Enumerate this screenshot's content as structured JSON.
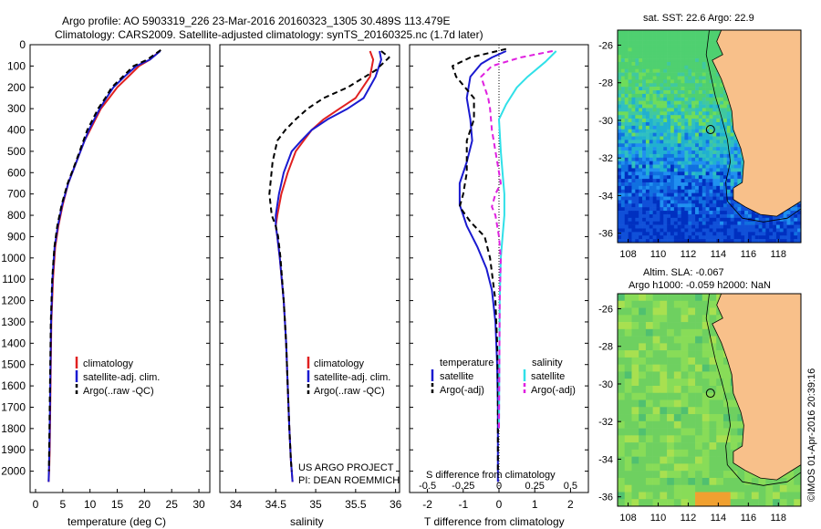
{
  "header": {
    "line1": "Argo profile: AO 5903319_226 23-Mar-2016 20160323_1305 30.489S 113.479E",
    "line2": "Climatology: CARS2009. Satellite-adjusted climatology: synTS_20160325.nc (1.7d later)"
  },
  "colors": {
    "climatology": "#e02020",
    "satellite": "#1a1ad0",
    "argo": "#000000",
    "salinity_satellite": "#30e0e8",
    "salinity_argo": "#e020e0",
    "land": "#f8c08a"
  },
  "chart_data": [
    {
      "type": "line",
      "name": "temperature",
      "xlabel": "temperature (deg C)",
      "ylabel": "",
      "xlim": [
        -1,
        32
      ],
      "ylim": [
        2100,
        0
      ],
      "xticks": [
        "0",
        "5",
        "10",
        "15",
        "20",
        "25",
        "30"
      ],
      "xtick_values": [
        0,
        5,
        10,
        15,
        20,
        25,
        30
      ],
      "yticks": [
        "0",
        "100",
        "200",
        "300",
        "400",
        "500",
        "600",
        "700",
        "800",
        "900",
        "1000",
        "1100",
        "1200",
        "1300",
        "1400",
        "1500",
        "1600",
        "1700",
        "1800",
        "1900",
        "2000"
      ],
      "ytick_values": [
        0,
        100,
        200,
        300,
        400,
        500,
        600,
        700,
        800,
        900,
        1000,
        1100,
        1200,
        1300,
        1400,
        1500,
        1600,
        1700,
        1800,
        1900,
        2000
      ],
      "legend": [
        "climatology",
        "satellite-adj. clim.",
        "Argo(..raw -QC)"
      ],
      "series": [
        {
          "name": "climatology",
          "style": "solid",
          "color": "#e02020",
          "x": [
            22.8,
            21,
            19,
            17,
            15,
            13.5,
            12,
            11,
            10,
            9,
            7.5,
            6,
            5,
            4.2,
            3.6,
            3.2,
            2.9,
            2.8,
            2.7,
            2.6,
            2.5,
            2.4
          ],
          "y": [
            30,
            70,
            100,
            150,
            200,
            250,
            300,
            350,
            400,
            450,
            550,
            650,
            750,
            850,
            950,
            1100,
            1300,
            1500,
            1700,
            1900,
            2000,
            2050
          ]
        },
        {
          "name": "satellite-adj. clim.",
          "style": "solid",
          "color": "#1a1ad0",
          "x": [
            22.9,
            21,
            18.5,
            16.3,
            14.3,
            13,
            11.8,
            10.8,
            9.8,
            9,
            7.5,
            6,
            4.9,
            4.1,
            3.5,
            3.1,
            2.85,
            2.75,
            2.65,
            2.55,
            2.45,
            2.4
          ],
          "y": [
            30,
            70,
            100,
            150,
            200,
            250,
            300,
            350,
            400,
            450,
            550,
            650,
            750,
            850,
            950,
            1100,
            1300,
            1500,
            1700,
            1900,
            2000,
            2050
          ]
        },
        {
          "name": "Argo(..raw -QC)",
          "style": "dashed",
          "color": "#000000",
          "x": [
            23,
            20.5,
            18,
            16,
            14,
            12.8,
            11.5,
            10.5,
            9.5,
            8.8,
            7.4,
            5.9,
            4.8,
            4,
            3.45,
            3.05,
            2.8,
            2.7,
            2.6,
            2.5,
            2.45
          ],
          "y": [
            25,
            70,
            100,
            150,
            200,
            250,
            300,
            350,
            400,
            450,
            550,
            650,
            750,
            850,
            950,
            1100,
            1300,
            1500,
            1700,
            1900,
            2000
          ]
        }
      ]
    },
    {
      "type": "line",
      "name": "salinity",
      "xlabel": "salinity",
      "xlim": [
        33.8,
        36.05
      ],
      "ylim": [
        2100,
        0
      ],
      "xticks": [
        "34",
        "34.5",
        "35",
        "35.5",
        "36"
      ],
      "xtick_values": [
        34,
        34.5,
        35,
        35.5,
        36
      ],
      "legend": [
        "climatology",
        "satellite-adj. clim.",
        "Argo(..raw -QC)"
      ],
      "annotation": [
        "US ARGO PROJECT",
        "PI: DEAN ROEMMICH"
      ],
      "series": [
        {
          "name": "climatology",
          "style": "solid",
          "color": "#e02020",
          "x": [
            35.68,
            35.72,
            35.68,
            35.5,
            35.3,
            35.1,
            34.95,
            34.85,
            34.75,
            34.65,
            34.57,
            34.52,
            34.5,
            34.52,
            34.55,
            34.6,
            34.63,
            34.65,
            34.67,
            34.69,
            34.7,
            34.71
          ],
          "y": [
            30,
            70,
            150,
            250,
            300,
            350,
            400,
            450,
            500,
            600,
            700,
            800,
            850,
            900,
            1000,
            1200,
            1400,
            1600,
            1800,
            1950,
            2000,
            2050
          ]
        },
        {
          "name": "satellite-adj. clim.",
          "style": "solid",
          "color": "#1a1ad0",
          "x": [
            35.8,
            35.82,
            35.75,
            35.6,
            35.4,
            35.15,
            34.95,
            34.82,
            34.7,
            34.6,
            34.54,
            34.5,
            34.5,
            34.52,
            34.55,
            34.6,
            34.63,
            34.65,
            34.67,
            34.69,
            34.7,
            34.71
          ],
          "y": [
            30,
            70,
            150,
            250,
            300,
            350,
            400,
            450,
            500,
            600,
            700,
            800,
            850,
            900,
            1000,
            1200,
            1400,
            1600,
            1800,
            1950,
            2000,
            2050
          ]
        },
        {
          "name": "Argo(..raw -QC)",
          "style": "dashed",
          "color": "#000000",
          "x": [
            35.82,
            35.92,
            35.75,
            35.4,
            35.1,
            34.9,
            34.75,
            34.62,
            34.52,
            34.46,
            34.42,
            34.45,
            34.5,
            34.53,
            34.56,
            34.6,
            34.63,
            34.65,
            34.67,
            34.69,
            34.7
          ],
          "y": [
            30,
            60,
            120,
            200,
            250,
            300,
            350,
            400,
            450,
            550,
            700,
            800,
            850,
            900,
            1000,
            1200,
            1400,
            1600,
            1800,
            1950,
            2000
          ]
        }
      ]
    },
    {
      "type": "line",
      "name": "difference",
      "xlabel": "T difference from climatology",
      "xlabel_top": "S difference from climatology",
      "xlim": [
        -2.5,
        2.5
      ],
      "ylim": [
        2100,
        0
      ],
      "xticks": [
        "-2",
        "-1",
        "0",
        "1",
        "2"
      ],
      "xtick_values": [
        -2,
        -1,
        0,
        1,
        2
      ],
      "top_xticks": [
        "-0.5",
        "-0.25",
        "0",
        "0.25",
        "0.5"
      ],
      "top_xtick_values": [
        -0.5,
        -0.25,
        0,
        0.25,
        0.5
      ],
      "legend_temperature_heading": "temperature",
      "legend_salinity_heading": "salinity",
      "legend_temperature": [
        "satellite",
        "Argo(-adj)"
      ],
      "legend_salinity": [
        "satellite",
        "Argo(-adj)"
      ],
      "series": [
        {
          "name": "T satellite",
          "style": "solid",
          "color": "#1a1ad0",
          "x": [
            0.2,
            -0.2,
            -0.5,
            -0.8,
            -0.9,
            -0.8,
            -0.75,
            -0.9,
            -1.1,
            -1.1,
            -0.9,
            -0.6,
            -0.35,
            -0.2,
            -0.1,
            -0.05,
            -0.03,
            -0.03,
            -0.03,
            -0.03
          ],
          "y": [
            30,
            60,
            90,
            150,
            250,
            350,
            450,
            550,
            650,
            750,
            850,
            950,
            1050,
            1150,
            1300,
            1500,
            1700,
            1800,
            1950,
            2050
          ]
        },
        {
          "name": "T Argo(-adj)",
          "style": "dashed",
          "color": "#000000",
          "x": [
            0.2,
            -0.8,
            -1.3,
            -1.2,
            -0.7,
            -0.7,
            -0.9,
            -0.9,
            -1.0,
            -1.1,
            -0.8,
            -0.4,
            -0.25,
            -0.1,
            -0.05,
            -0.03,
            -0.03,
            -0.03
          ],
          "y": [
            20,
            60,
            100,
            150,
            250,
            350,
            450,
            600,
            700,
            760,
            830,
            900,
            1000,
            1200,
            1400,
            1600,
            1800,
            2000
          ]
        },
        {
          "name": "S satellite",
          "style": "solid",
          "color": "#30e0e8",
          "x": [
            1.6,
            1.3,
            0.8,
            0.5,
            0.2,
            0.0,
            0.05,
            0.1,
            0.15,
            0.15,
            0.1,
            0.05,
            0.02,
            0.01,
            0.0
          ],
          "y": [
            30,
            80,
            150,
            200,
            280,
            350,
            500,
            600,
            700,
            800,
            900,
            1000,
            1200,
            1500,
            1800
          ]
        },
        {
          "name": "S Argo(-adj)",
          "style": "dashed",
          "color": "#e020e0",
          "x": [
            1.5,
            0.6,
            -0.2,
            -0.5,
            -0.4,
            -0.3,
            -0.25,
            -0.2,
            0.05,
            -0.1,
            -0.2,
            -0.1,
            0.0,
            0.05,
            0.02,
            0.01,
            0.0
          ],
          "y": [
            30,
            60,
            100,
            150,
            200,
            250,
            300,
            400,
            650,
            700,
            760,
            800,
            900,
            1000,
            1200,
            1500,
            1800
          ]
        }
      ]
    }
  ],
  "sst_map": {
    "title": "sat. SST: 22.6 Argo: 22.9",
    "yticks": [
      "-26",
      "-28",
      "-30",
      "-32",
      "-34",
      "-36"
    ],
    "ytick_values": [
      -26,
      -28,
      -30,
      -32,
      -34,
      -36
    ],
    "xticks": [
      "108",
      "110",
      "112",
      "114",
      "116",
      "118"
    ],
    "xtick_values": [
      108,
      110,
      112,
      114,
      116,
      118
    ],
    "lon_range": [
      107.3,
      119.5
    ],
    "lat_range": [
      -36.5,
      -25.2
    ],
    "float_position": [
      113.479,
      -30.489
    ]
  },
  "sla_map": {
    "title_line1": "Altim. SLA: -0.067",
    "title_line2": "Argo h1000: -0.059 h2000: NaN",
    "yticks": [
      "-26",
      "-28",
      "-30",
      "-32",
      "-34",
      "-36"
    ],
    "ytick_values": [
      -26,
      -28,
      -30,
      -32,
      -34,
      -36
    ],
    "xticks": [
      "108",
      "110",
      "112",
      "114",
      "116",
      "118"
    ],
    "xtick_values": [
      108,
      110,
      112,
      114,
      116,
      118
    ],
    "lon_range": [
      107.3,
      119.5
    ],
    "lat_range": [
      -36.5,
      -25.2
    ],
    "float_position": [
      113.479,
      -30.489
    ]
  },
  "credit": "©IMOS 01-Apr-2016 20:39:16"
}
